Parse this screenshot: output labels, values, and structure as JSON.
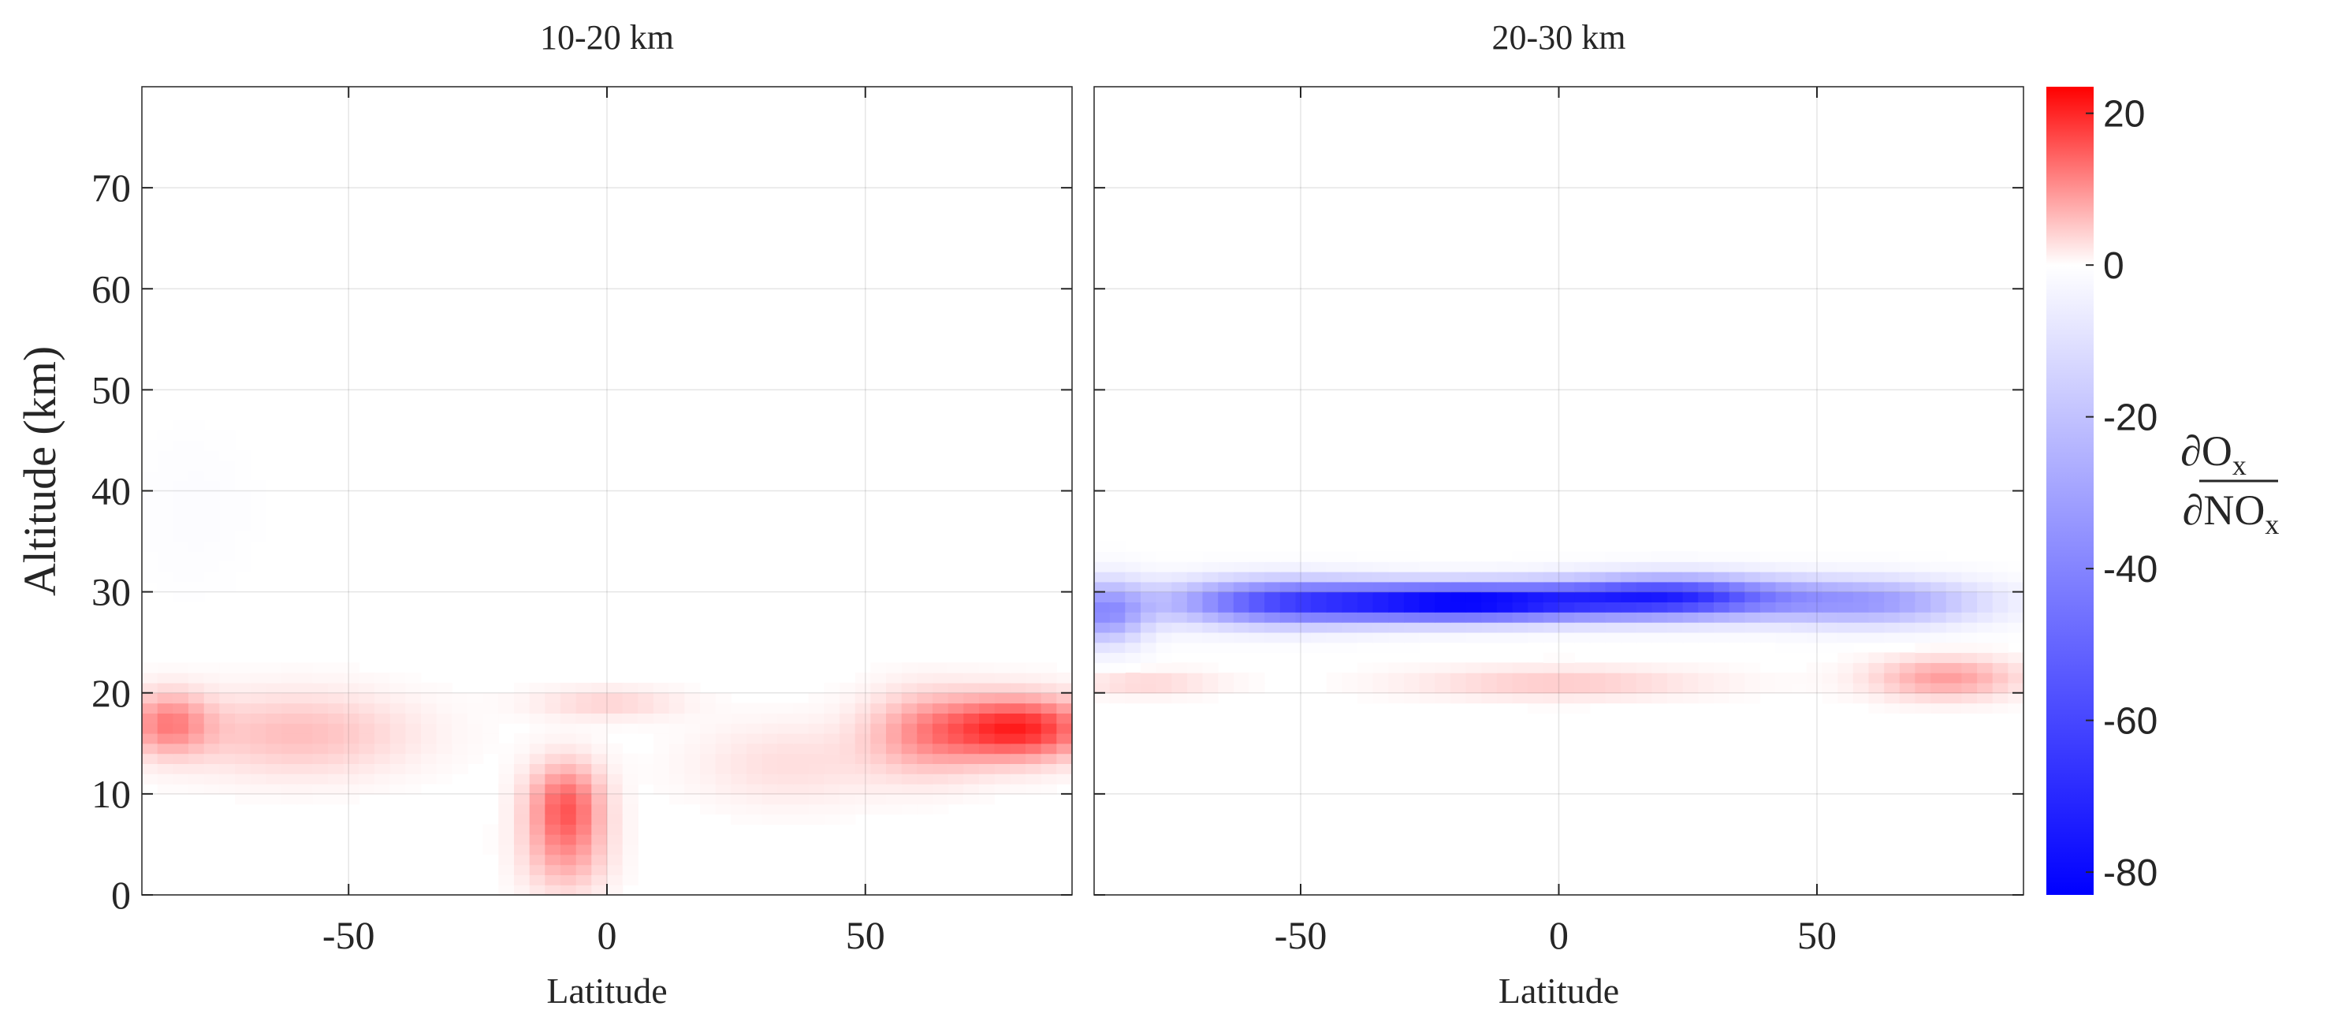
{
  "chart_data": {
    "type": "heatmap",
    "panels": [
      {
        "title": "10-20 km",
        "xlabel": "Latitude",
        "ylabel": "Altitude (km)",
        "xlim": [
          -90,
          90
        ],
        "ylim": [
          0,
          80
        ],
        "xticks": [
          -50,
          0,
          50
        ],
        "yticks": [
          0,
          10,
          20,
          30,
          40,
          50,
          60,
          70
        ],
        "grid": true,
        "features": [
          {
            "lat": 80,
            "alt": 16.5,
            "value": 20,
            "lat_width": 14,
            "alt_width": 3
          },
          {
            "lat": 62,
            "alt": 16,
            "value": 9,
            "lat_width": 12,
            "alt_width": 4
          },
          {
            "lat": -85,
            "alt": 17,
            "value": 11,
            "lat_width": 8,
            "alt_width": 3
          },
          {
            "lat": -60,
            "alt": 16,
            "value": 6,
            "lat_width": 22,
            "alt_width": 4
          },
          {
            "lat": -8,
            "alt": 9,
            "value": 14,
            "lat_width": 7,
            "alt_width": 4
          },
          {
            "lat": -8,
            "alt": 4,
            "value": 7,
            "lat_width": 8,
            "alt_width": 4
          },
          {
            "lat": 0,
            "alt": 19,
            "value": 4,
            "lat_width": 14,
            "alt_width": 1.5
          },
          {
            "lat": 35,
            "alt": 13,
            "value": 3,
            "lat_width": 18,
            "alt_width": 4
          },
          {
            "lat": -80,
            "alt": 38,
            "value": -1,
            "lat_width": 12,
            "alt_width": 8
          }
        ]
      },
      {
        "title": "20-30 km",
        "xlabel": "Latitude",
        "ylabel": "",
        "xlim": [
          -90,
          90
        ],
        "ylim": [
          0,
          80
        ],
        "xticks": [
          -50,
          0,
          50
        ],
        "yticks": [
          0,
          10,
          20,
          30,
          40,
          50,
          60,
          70
        ],
        "grid": true,
        "features": [
          {
            "lat": -18,
            "alt": 29,
            "value": -82,
            "lat_width": 28,
            "alt_width": 1.8
          },
          {
            "lat": 22,
            "alt": 29.5,
            "value": -62,
            "lat_width": 22,
            "alt_width": 2
          },
          {
            "lat": -55,
            "alt": 29,
            "value": -48,
            "lat_width": 22,
            "alt_width": 2.2
          },
          {
            "lat": 60,
            "alt": 29,
            "value": -32,
            "lat_width": 22,
            "alt_width": 2.2
          },
          {
            "lat": -88,
            "alt": 28,
            "value": -35,
            "lat_width": 8,
            "alt_width": 3
          },
          {
            "lat": 75,
            "alt": 21.5,
            "value": 9,
            "lat_width": 14,
            "alt_width": 2
          },
          {
            "lat": 0,
            "alt": 21,
            "value": 5,
            "lat_width": 28,
            "alt_width": 1.5
          },
          {
            "lat": -80,
            "alt": 21,
            "value": 4,
            "lat_width": 14,
            "alt_width": 1.2
          }
        ]
      }
    ],
    "colorbar": {
      "range": [
        -83,
        23.5
      ],
      "ticks": [
        20,
        0,
        -20,
        -40,
        -60,
        -80
      ],
      "colors": {
        "min": "#0000ff",
        "mid": "#ffffff",
        "max": "#ff0000"
      }
    }
  }
}
